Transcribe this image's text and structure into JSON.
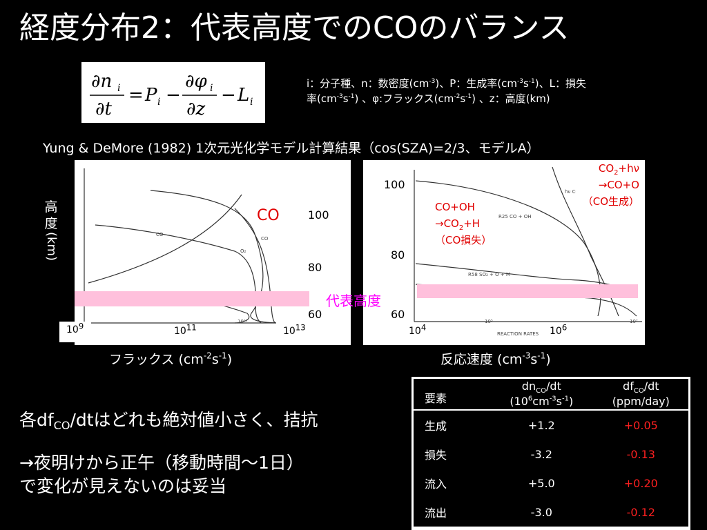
{
  "title": "経度分布2：代表高度でのCOのバランス",
  "definitions": {
    "line1": "i：分子種、n：数密度(cm-3)、P：生成率(cm-3s-1)、L：損失",
    "line2": "率(cm-3s-1) 、φ:フラックス(cm-2s-1) 、z：高度(km)"
  },
  "source": "Yung & DeMore (1982)   1次元光化学モデル計算結果（cos(SZA)=2/3、モデルA）",
  "left_panel": {
    "y_axis_label": "高度 (km)",
    "x_axis_label": "フラックス (cm-2s-1)",
    "species_label": "CO",
    "y_ticks": [
      "100",
      "80",
      "60"
    ],
    "x_ticks": [
      "10^9",
      "10^11",
      "10^13"
    ]
  },
  "right_panel": {
    "x_axis_label": "反応速度 (cm-3s-1)",
    "y_ticks": [
      "100",
      "80",
      "60"
    ],
    "x_ticks": [
      "10^4",
      "10^6"
    ],
    "annotation_loss": {
      "line1": "CO+OH",
      "line2": "→CO2+H",
      "line3": "（CO損失）"
    },
    "annotation_production": {
      "line1": "CO2+hν",
      "line2": "→CO+O",
      "line3": "（CO生成）"
    }
  },
  "representative_altitude_label": "代表高度",
  "body_text": {
    "line1": "各dfCO/dtはどれも絶対値小さく、拮抗",
    "line2": "→夜明けから正午（移動時間〜1日）",
    "line3": "で変化が見えないのは妥当"
  },
  "table": {
    "headers": [
      "要素",
      "dnCO/dt (106cm-3s-1)",
      "dfCO/dt (ppm/day)"
    ],
    "rows": [
      {
        "name": "生成",
        "dn": "+1.2",
        "df": "+0.05"
      },
      {
        "name": "損失",
        "dn": "-3.2",
        "df": "-0.13"
      },
      {
        "name": "流入",
        "dn": "+5.0",
        "df": "+0.20"
      },
      {
        "name": "流出",
        "dn": "-3.0",
        "df": "-0.12"
      }
    ]
  },
  "colors": {
    "background": "#000000",
    "highlight_band": "#ffc0dc",
    "emphasis_red": "#e00000",
    "magenta": "#ff00ff"
  }
}
